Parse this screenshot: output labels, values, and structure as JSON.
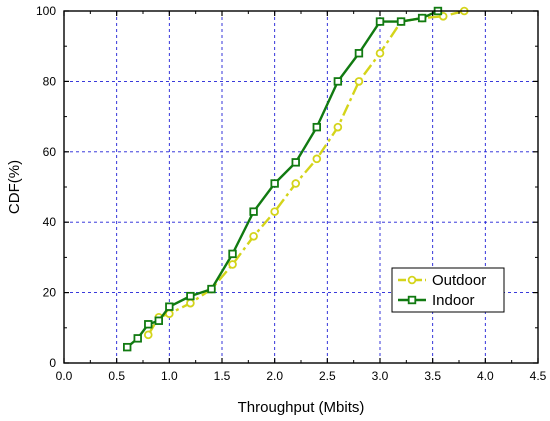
{
  "chart_data": {
    "type": "line",
    "xlabel": "Throughput (Mbits)",
    "ylabel": "CDF(%)",
    "xlim": [
      0.0,
      4.5
    ],
    "ylim": [
      0,
      100
    ],
    "xticks": [
      "0.0",
      "0.5",
      "1.0",
      "1.5",
      "2.0",
      "2.5",
      "3.0",
      "3.5",
      "4.0",
      "4.5"
    ],
    "yticks": [
      "0",
      "20",
      "40",
      "60",
      "80",
      "100"
    ],
    "grid": true,
    "legend_position": "bottom-right",
    "series": [
      {
        "name": "Outdoor",
        "color": "#d4d41a",
        "line_style": "dash-dot",
        "marker": "circle",
        "x": [
          0.8,
          0.9,
          1.0,
          1.2,
          1.4,
          1.6,
          1.8,
          2.0,
          2.2,
          2.4,
          2.6,
          2.8,
          3.0,
          3.2,
          3.4,
          3.6,
          3.8
        ],
        "y": [
          8,
          13,
          14,
          17,
          21,
          28,
          36,
          43,
          51,
          58,
          67,
          80,
          88,
          97,
          98,
          98.5,
          100
        ]
      },
      {
        "name": "Indoor",
        "color": "#117a11",
        "line_style": "solid",
        "marker": "square",
        "x": [
          0.6,
          0.7,
          0.8,
          0.9,
          1.0,
          1.2,
          1.4,
          1.6,
          1.8,
          2.0,
          2.2,
          2.4,
          2.6,
          2.8,
          3.0,
          3.2,
          3.4,
          3.55
        ],
        "y": [
          4.5,
          7,
          11,
          12,
          16,
          19,
          21,
          31,
          43,
          51,
          57,
          67,
          80,
          88,
          97,
          97,
          98,
          100
        ]
      }
    ]
  }
}
